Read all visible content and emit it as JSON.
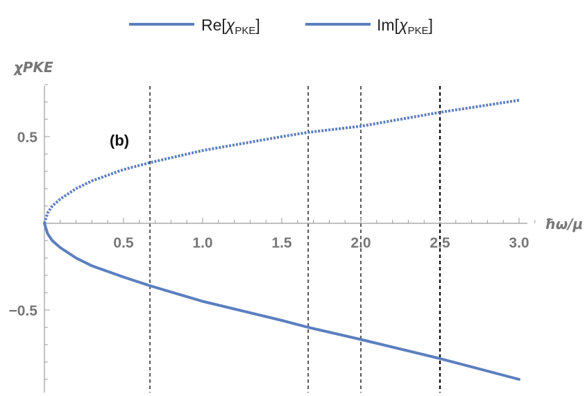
{
  "chart_data": {
    "type": "line",
    "panel_label": "(b)",
    "xlabel": "ħω/μ",
    "ylabel": "χPKE",
    "xlim": [
      0,
      3.1
    ],
    "ylim": [
      -0.95,
      0.82
    ],
    "x_ticks": [
      0.5,
      1.0,
      1.5,
      2.0,
      2.5,
      3.0
    ],
    "x_tick_labels": [
      "0.5",
      "1.0",
      "1.5",
      "2.0",
      "2.5",
      "3.0"
    ],
    "y_ticks": [
      0.5,
      -0.5
    ],
    "y_tick_labels": [
      "0.5",
      "-0.5"
    ],
    "vertical_lines": [
      0.667,
      1.667,
      2.0,
      2.5
    ],
    "legend": {
      "placement": "top",
      "entries": [
        {
          "prefix": "Re[",
          "symbol": "χ",
          "sub": "PKE",
          "suffix": "]"
        },
        {
          "prefix": "Im[",
          "symbol": "χ",
          "sub": "PKE",
          "suffix": "]"
        }
      ]
    },
    "color": "#5b7fbf",
    "series": [
      {
        "style": "dotted",
        "x": [
          0.0,
          0.02,
          0.05,
          0.1,
          0.2,
          0.3,
          0.5,
          0.667,
          1.0,
          1.5,
          1.667,
          2.0,
          2.5,
          3.0
        ],
        "y": [
          0.0,
          0.06,
          0.1,
          0.14,
          0.2,
          0.245,
          0.31,
          0.35,
          0.42,
          0.5,
          0.525,
          0.56,
          0.64,
          0.71
        ]
      },
      {
        "style": "solid",
        "x": [
          0.0,
          0.02,
          0.05,
          0.1,
          0.2,
          0.3,
          0.5,
          0.667,
          1.0,
          1.5,
          1.667,
          2.0,
          2.5,
          3.0
        ],
        "y": [
          0.0,
          -0.06,
          -0.1,
          -0.14,
          -0.2,
          -0.245,
          -0.31,
          -0.36,
          -0.45,
          -0.56,
          -0.6,
          -0.67,
          -0.78,
          -0.9
        ]
      }
    ]
  }
}
